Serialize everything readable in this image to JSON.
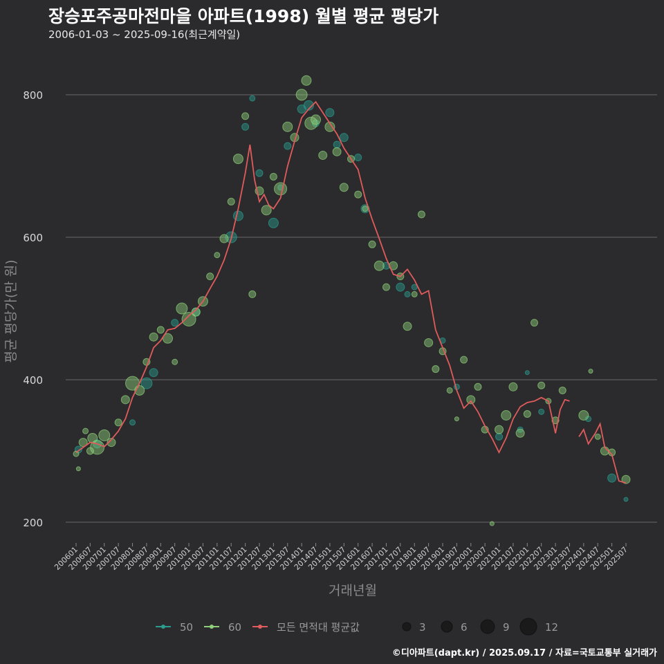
{
  "chart_data": {
    "type": "scatter",
    "title": "장승포주공마전마을 아파트(1998) 월별 평균 평당가",
    "subtitle": "2006-01-03 ~ 2025-09-16(최근계약일)",
    "xlabel": "거래년월",
    "ylabel": "평균 평당가(만 원)",
    "yticks": [
      200,
      400,
      600,
      800
    ],
    "ylim": [
      170,
      850
    ],
    "xticks": [
      "200601",
      "200607",
      "200701",
      "200707",
      "200801",
      "200807",
      "200901",
      "200907",
      "201001",
      "201007",
      "201101",
      "201107",
      "201201",
      "201207",
      "201301",
      "201307",
      "201401",
      "201407",
      "201501",
      "201507",
      "201601",
      "201607",
      "201701",
      "201707",
      "201801",
      "201807",
      "201901",
      "201907",
      "202001",
      "202007",
      "202101",
      "202107",
      "202201",
      "202207",
      "202301",
      "202307",
      "202401",
      "202407",
      "202501",
      "202507"
    ],
    "grid": true,
    "legend_position": "bottom",
    "colors": {
      "50": "#2a9d8f",
      "60": "#8fd17a",
      "avg": "#e05c5c"
    },
    "legend": {
      "series": [
        {
          "name": "50",
          "color": "#2a9d8f"
        },
        {
          "name": "60",
          "color": "#8fd17a"
        },
        {
          "name": "모든 면적대 평균값",
          "color": "#e05c5c"
        }
      ],
      "sizes": [
        3,
        6,
        9,
        12
      ]
    },
    "avg_line": [
      [
        "200601",
        298
      ],
      [
        "200604",
        305
      ],
      [
        "200607",
        312
      ],
      [
        "200610",
        310
      ],
      [
        "200701",
        306
      ],
      [
        "200704",
        316
      ],
      [
        "200707",
        328
      ],
      [
        "200710",
        345
      ],
      [
        "200801",
        375
      ],
      [
        "200804",
        395
      ],
      [
        "200807",
        418
      ],
      [
        "200810",
        445
      ],
      [
        "200901",
        455
      ],
      [
        "200904",
        470
      ],
      [
        "200907",
        472
      ],
      [
        "200910",
        480
      ],
      [
        "201001",
        490
      ],
      [
        "201004",
        498
      ],
      [
        "201007",
        510
      ],
      [
        "201010",
        528
      ],
      [
        "201101",
        545
      ],
      [
        "201104",
        568
      ],
      [
        "201107",
        598
      ],
      [
        "201110",
        640
      ],
      [
        "201201",
        690
      ],
      [
        "201203",
        730
      ],
      [
        "201205",
        680
      ],
      [
        "201207",
        650
      ],
      [
        "201209",
        660
      ],
      [
        "201211",
        645
      ],
      [
        "201301",
        640
      ],
      [
        "201304",
        655
      ],
      [
        "201307",
        700
      ],
      [
        "201310",
        735
      ],
      [
        "201401",
        768
      ],
      [
        "201404",
        780
      ],
      [
        "201407",
        790
      ],
      [
        "201410",
        775
      ],
      [
        "201501",
        760
      ],
      [
        "201504",
        745
      ],
      [
        "201507",
        725
      ],
      [
        "201510",
        710
      ],
      [
        "201601",
        695
      ],
      [
        "201604",
        655
      ],
      [
        "201607",
        625
      ],
      [
        "201610",
        598
      ],
      [
        "201701",
        570
      ],
      [
        "201704",
        548
      ],
      [
        "201707",
        545
      ],
      [
        "201710",
        555
      ],
      [
        "201801",
        540
      ],
      [
        "201804",
        520
      ],
      [
        "201807",
        525
      ],
      [
        "201810",
        470
      ],
      [
        "201901",
        445
      ],
      [
        "201904",
        420
      ],
      [
        "201907",
        385
      ],
      [
        "201910",
        360
      ],
      [
        "202001",
        370
      ],
      [
        "202004",
        355
      ],
      [
        "202007",
        335
      ],
      [
        "202010",
        318
      ],
      [
        "202101",
        298
      ],
      [
        "202104",
        318
      ],
      [
        "202107",
        345
      ],
      [
        "202110",
        362
      ],
      [
        "202201",
        368
      ],
      [
        "202204",
        370
      ],
      [
        "202207",
        375
      ],
      [
        "202210",
        370
      ],
      [
        "202301",
        325
      ],
      [
        "202303",
        358
      ],
      [
        "202305",
        372
      ],
      [
        "202307",
        370
      ],
      [
        "202311",
        320
      ],
      [
        "202401",
        330
      ],
      [
        "202403",
        310
      ],
      [
        "202406",
        325
      ],
      [
        "202408",
        338
      ],
      [
        "202410",
        305
      ],
      [
        "202501",
        295
      ],
      [
        "202504",
        258
      ],
      [
        "202507",
        255
      ]
    ],
    "series": [
      {
        "name": "50",
        "points": [
          [
            "200602",
            302,
            5
          ],
          [
            "200610",
            310,
            6
          ],
          [
            "200801",
            340,
            4
          ],
          [
            "200807",
            395,
            8
          ],
          [
            "200810",
            410,
            6
          ],
          [
            "200907",
            480,
            5
          ],
          [
            "201004",
            495,
            6
          ],
          [
            "201107",
            600,
            8
          ],
          [
            "201110",
            630,
            7
          ],
          [
            "201201",
            755,
            5
          ],
          [
            "201204",
            795,
            4
          ],
          [
            "201207",
            690,
            5
          ],
          [
            "201301",
            620,
            7
          ],
          [
            "201304",
            670,
            4
          ],
          [
            "201307",
            728,
            5
          ],
          [
            "201401",
            780,
            6
          ],
          [
            "201404",
            785,
            7
          ],
          [
            "201407",
            760,
            5
          ],
          [
            "201501",
            775,
            6
          ],
          [
            "201504",
            730,
            5
          ],
          [
            "201507",
            740,
            6
          ],
          [
            "201601",
            712,
            5
          ],
          [
            "201604",
            640,
            6
          ],
          [
            "201701",
            560,
            5
          ],
          [
            "201707",
            530,
            6
          ],
          [
            "201710",
            520,
            4
          ],
          [
            "201801",
            530,
            4
          ],
          [
            "201901",
            455,
            4
          ],
          [
            "201907",
            390,
            4
          ],
          [
            "202101",
            320,
            5
          ],
          [
            "202110",
            330,
            4
          ],
          [
            "202201",
            410,
            3
          ],
          [
            "202207",
            355,
            4
          ],
          [
            "202403",
            345,
            4
          ],
          [
            "202501",
            262,
            6
          ],
          [
            "202507",
            232,
            3
          ]
        ]
      },
      {
        "name": "60",
        "points": [
          [
            "200601",
            296,
            4
          ],
          [
            "200602",
            275,
            3
          ],
          [
            "200604",
            312,
            6
          ],
          [
            "200605",
            328,
            4
          ],
          [
            "200607",
            300,
            5
          ],
          [
            "200608",
            318,
            7
          ],
          [
            "200610",
            305,
            10
          ],
          [
            "200701",
            322,
            8
          ],
          [
            "200704",
            312,
            6
          ],
          [
            "200707",
            340,
            5
          ],
          [
            "200710",
            372,
            6
          ],
          [
            "200801",
            395,
            10
          ],
          [
            "200804",
            385,
            7
          ],
          [
            "200807",
            425,
            5
          ],
          [
            "200810",
            460,
            6
          ],
          [
            "200901",
            470,
            5
          ],
          [
            "200904",
            458,
            7
          ],
          [
            "200907",
            425,
            4
          ],
          [
            "200910",
            500,
            8
          ],
          [
            "201001",
            485,
            10
          ],
          [
            "201004",
            495,
            6
          ],
          [
            "201007",
            510,
            7
          ],
          [
            "201010",
            545,
            5
          ],
          [
            "201101",
            575,
            4
          ],
          [
            "201104",
            598,
            6
          ],
          [
            "201107",
            650,
            5
          ],
          [
            "201110",
            710,
            7
          ],
          [
            "201201",
            770,
            5
          ],
          [
            "201204",
            520,
            5
          ],
          [
            "201207",
            665,
            6
          ],
          [
            "201210",
            638,
            7
          ],
          [
            "201301",
            685,
            5
          ],
          [
            "201304",
            668,
            9
          ],
          [
            "201307",
            755,
            7
          ],
          [
            "201310",
            740,
            6
          ],
          [
            "201401",
            800,
            8
          ],
          [
            "201403",
            820,
            7
          ],
          [
            "201405",
            760,
            9
          ],
          [
            "201407",
            765,
            7
          ],
          [
            "201410",
            715,
            6
          ],
          [
            "201501",
            755,
            7
          ],
          [
            "201504",
            720,
            6
          ],
          [
            "201507",
            670,
            6
          ],
          [
            "201510",
            710,
            5
          ],
          [
            "201601",
            660,
            5
          ],
          [
            "201604",
            640,
            4
          ],
          [
            "201607",
            590,
            5
          ],
          [
            "201610",
            560,
            7
          ],
          [
            "201701",
            530,
            5
          ],
          [
            "201704",
            560,
            6
          ],
          [
            "201707",
            545,
            5
          ],
          [
            "201710",
            475,
            6
          ],
          [
            "201801",
            520,
            4
          ],
          [
            "201804",
            632,
            5
          ],
          [
            "201807",
            452,
            6
          ],
          [
            "201810",
            415,
            5
          ],
          [
            "201901",
            440,
            5
          ],
          [
            "201904",
            385,
            4
          ],
          [
            "201907",
            345,
            3
          ],
          [
            "201910",
            428,
            5
          ],
          [
            "202001",
            372,
            6
          ],
          [
            "202004",
            390,
            5
          ],
          [
            "202007",
            330,
            5
          ],
          [
            "202010",
            198,
            3
          ],
          [
            "202101",
            330,
            6
          ],
          [
            "202104",
            350,
            7
          ],
          [
            "202107",
            390,
            6
          ],
          [
            "202110",
            325,
            6
          ],
          [
            "202201",
            352,
            5
          ],
          [
            "202204",
            480,
            5
          ],
          [
            "202207",
            392,
            5
          ],
          [
            "202210",
            370,
            4
          ],
          [
            "202301",
            343,
            5
          ],
          [
            "202304",
            385,
            5
          ],
          [
            "202401",
            350,
            7
          ],
          [
            "202404",
            412,
            3
          ],
          [
            "202407",
            320,
            4
          ],
          [
            "202410",
            300,
            6
          ],
          [
            "202501",
            298,
            5
          ],
          [
            "202507",
            260,
            6
          ]
        ]
      }
    ],
    "footer": "©디아파트(dapt.kr) / 2025.09.17 / 자료=국토교통부 실거래가"
  }
}
